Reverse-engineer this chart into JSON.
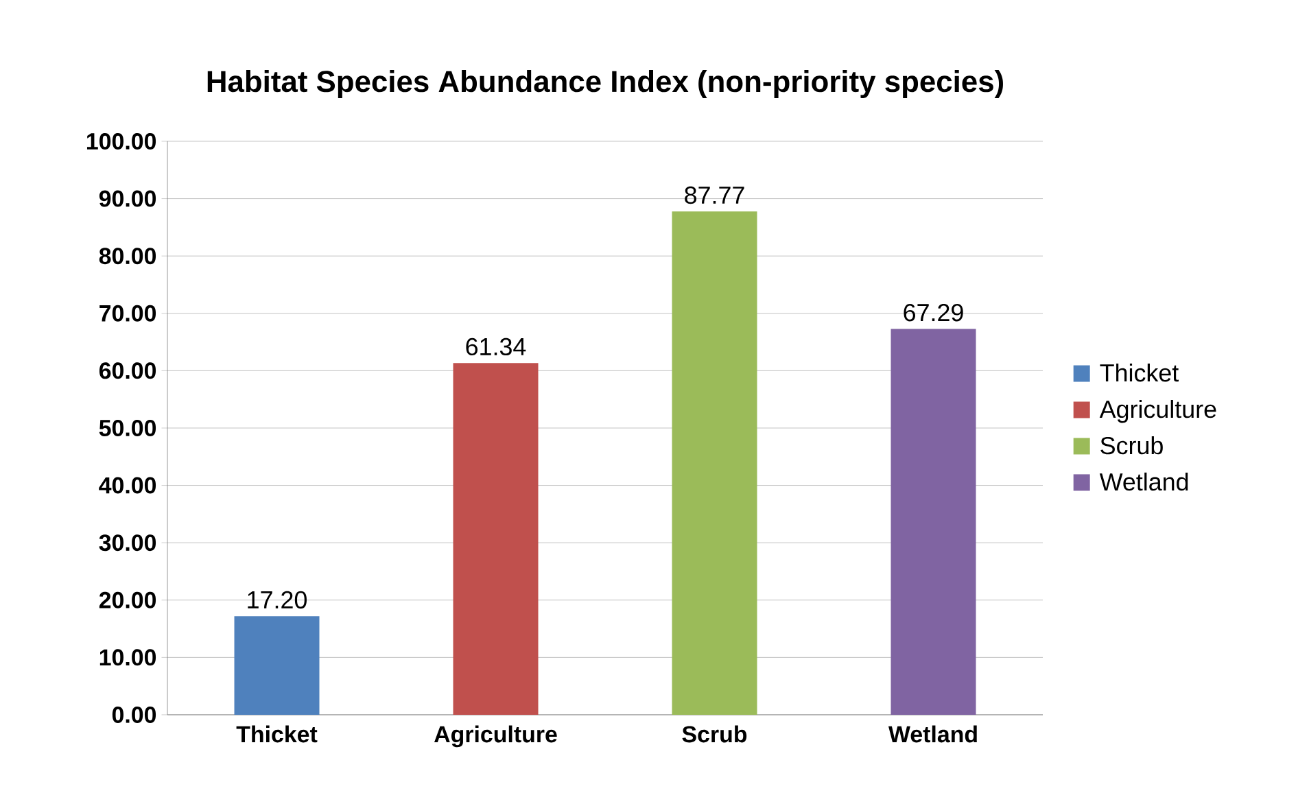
{
  "chart_data": {
    "type": "bar",
    "title": "Habitat Species Abundance Index (non-priority species)",
    "categories": [
      "Thicket",
      "Agriculture",
      "Scrub",
      "Wetland"
    ],
    "series": [
      {
        "name": "Thicket",
        "color": "#4f81bd",
        "values": [
          17.2,
          null,
          null,
          null
        ],
        "value_labels": [
          "17.20",
          null,
          null,
          null
        ]
      },
      {
        "name": "Agriculture",
        "color": "#c0504d",
        "values": [
          null,
          61.34,
          null,
          null
        ],
        "value_labels": [
          null,
          "61.34",
          null,
          null
        ]
      },
      {
        "name": "Scrub",
        "color": "#9bbb59",
        "values": [
          null,
          null,
          87.77,
          null
        ],
        "value_labels": [
          null,
          null,
          "87.77",
          null
        ]
      },
      {
        "name": "Wetland",
        "color": "#8064a2",
        "values": [
          null,
          null,
          null,
          67.29
        ],
        "value_labels": [
          null,
          null,
          null,
          "67.29"
        ]
      }
    ],
    "ylim": [
      0,
      100
    ],
    "yticks": [
      {
        "value": 0,
        "label": "0.00"
      },
      {
        "value": 10,
        "label": "10.00"
      },
      {
        "value": 20,
        "label": "20.00"
      },
      {
        "value": 30,
        "label": "30.00"
      },
      {
        "value": 40,
        "label": "40.00"
      },
      {
        "value": 50,
        "label": "50.00"
      },
      {
        "value": 60,
        "label": "60.00"
      },
      {
        "value": 70,
        "label": "70.00"
      },
      {
        "value": 80,
        "label": "80.00"
      },
      {
        "value": 90,
        "label": "90.00"
      },
      {
        "value": 100,
        "label": "100.00"
      }
    ],
    "grid": "y",
    "legend": "right"
  }
}
